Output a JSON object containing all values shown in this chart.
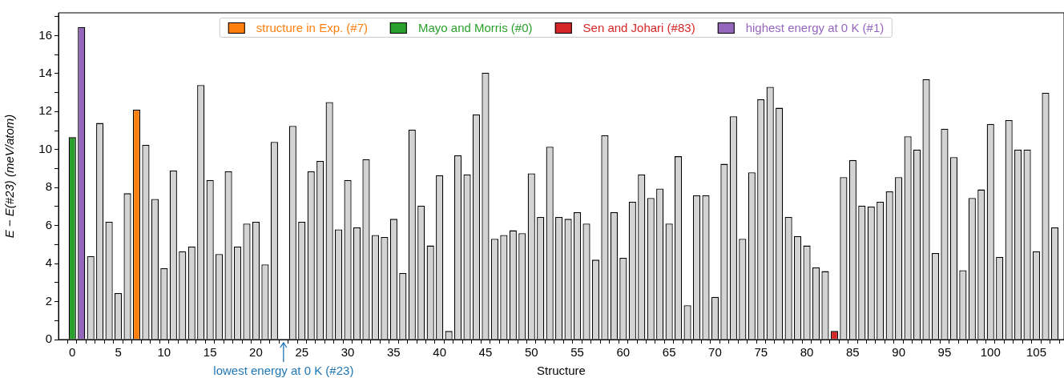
{
  "chart_data": {
    "type": "bar",
    "xlabel": "Structure",
    "ylabel": "E − E(#23) (meV/atom)",
    "series": [
      {
        "color": "#d3d3d3",
        "x": [
          2,
          3,
          4,
          5,
          6,
          8,
          9,
          10,
          11,
          12,
          13,
          14,
          15,
          16,
          17,
          18,
          19,
          20,
          21,
          22,
          23,
          24,
          25,
          26,
          27,
          28,
          29,
          30,
          31,
          32,
          33,
          34,
          35,
          36,
          37,
          38,
          39,
          40,
          41,
          42,
          43,
          44,
          45,
          46,
          47,
          48,
          49,
          50,
          51,
          52,
          53,
          54,
          55,
          56,
          57,
          58,
          59,
          60,
          61,
          62,
          63,
          64,
          65,
          66,
          67,
          68,
          69,
          70,
          71,
          72,
          73,
          74,
          75,
          76,
          77,
          78,
          79,
          80,
          81,
          82,
          84,
          85,
          86,
          87,
          88,
          89,
          90,
          91,
          92,
          93,
          94,
          95,
          96,
          97,
          98,
          99,
          100,
          101,
          102,
          103,
          104,
          105,
          106,
          107
        ],
        "values": [
          4.4,
          11.4,
          6.2,
          2.45,
          7.7,
          10.25,
          7.4,
          3.75,
          8.9,
          4.65,
          4.9,
          13.4,
          8.4,
          4.5,
          8.85,
          4.9,
          6.1,
          6.2,
          3.95,
          10.4,
          0,
          11.25,
          6.2,
          8.85,
          9.4,
          12.5,
          5.8,
          8.4,
          5.9,
          9.5,
          5.5,
          5.4,
          6.35,
          3.5,
          11.05,
          7.05,
          4.95,
          8.65,
          0.45,
          9.7,
          8.7,
          11.85,
          14.05,
          5.3,
          5.5,
          5.75,
          5.6,
          8.75,
          6.45,
          10.15,
          6.45,
          6.35,
          6.7,
          6.1,
          4.2,
          10.75,
          6.7,
          4.3,
          7.25,
          8.7,
          7.45,
          7.95,
          6.1,
          9.65,
          1.8,
          7.6,
          7.6,
          2.25,
          9.25,
          11.75,
          5.3,
          8.8,
          12.65,
          13.3,
          12.2,
          6.45,
          5.45,
          4.95,
          3.8,
          3.6,
          8.55,
          9.45,
          7.05,
          7.0,
          7.25,
          7.8,
          8.55,
          10.7,
          10.0,
          13.7,
          4.55,
          11.1,
          9.6,
          3.65,
          7.45,
          7.9,
          11.35,
          4.35,
          11.55,
          10.0,
          10.0,
          4.65,
          13.0,
          5.9
        ]
      },
      {
        "name": "structure in Exp. (#7)",
        "color": "#ff7f0e",
        "x": [
          7
        ],
        "values": [
          12.1
        ]
      },
      {
        "name": "Mayo and Morris (#0)",
        "color": "#2ca02c",
        "x": [
          0
        ],
        "values": [
          10.65
        ]
      },
      {
        "name": "Sen and Johari (#83)",
        "color": "#d62728",
        "x": [
          83
        ],
        "values": [
          0.45
        ]
      },
      {
        "name": "highest energy at 0 K (#1)",
        "color": "#9467bd",
        "x": [
          1
        ],
        "values": [
          16.45
        ]
      }
    ],
    "xlim": [
      -1,
      107.5
    ],
    "xticks": [
      0,
      {
        "value": 1,
        "label": null
      },
      {
        "value": 2,
        "label": null
      },
      {
        "value": 3,
        "label": null
      },
      {
        "value": 4,
        "label": null
      },
      5,
      {
        "value": 6,
        "label": null
      },
      {
        "value": 7,
        "label": null
      },
      {
        "value": 8,
        "label": null
      },
      {
        "value": 9,
        "label": null
      },
      10,
      {
        "value": 11,
        "label": null
      },
      {
        "value": 12,
        "label": null
      },
      {
        "value": 13,
        "label": null
      },
      {
        "value": 14,
        "label": null
      },
      15,
      {
        "value": 16,
        "label": null
      },
      {
        "value": 17,
        "label": null
      },
      {
        "value": 18,
        "label": null
      },
      {
        "value": 19,
        "label": null
      },
      20,
      {
        "value": 21,
        "label": null
      },
      {
        "value": 22,
        "label": null
      },
      {
        "value": 23,
        "label": null
      },
      {
        "value": 24,
        "label": null
      },
      25,
      {
        "value": 26,
        "label": null
      },
      {
        "value": 27,
        "label": null
      },
      {
        "value": 28,
        "label": null
      },
      {
        "value": 29,
        "label": null
      },
      30,
      {
        "value": 31,
        "label": null
      },
      {
        "value": 32,
        "label": null
      },
      {
        "value": 33,
        "label": null
      },
      {
        "value": 34,
        "label": null
      },
      35,
      {
        "value": 36,
        "label": null
      },
      {
        "value": 37,
        "label": null
      },
      {
        "value": 38,
        "label": null
      },
      {
        "value": 39,
        "label": null
      },
      40,
      {
        "value": 41,
        "label": null
      },
      {
        "value": 42,
        "label": null
      },
      {
        "value": 43,
        "label": null
      },
      {
        "value": 44,
        "label": null
      },
      45,
      {
        "value": 46,
        "label": null
      },
      {
        "value": 47,
        "label": null
      },
      {
        "value": 48,
        "label": null
      },
      {
        "value": 49,
        "label": null
      },
      50,
      {
        "value": 51,
        "label": null
      },
      {
        "value": 52,
        "label": null
      },
      {
        "value": 53,
        "label": null
      },
      {
        "value": 54,
        "label": null
      },
      55,
      {
        "value": 56,
        "label": null
      },
      {
        "value": 57,
        "label": null
      },
      {
        "value": 58,
        "label": null
      },
      {
        "value": 59,
        "label": null
      },
      60,
      {
        "value": 61,
        "label": null
      },
      {
        "value": 62,
        "label": null
      },
      {
        "value": 63,
        "label": null
      },
      {
        "value": 64,
        "label": null
      },
      65,
      {
        "value": 66,
        "label": null
      },
      {
        "value": 67,
        "label": null
      },
      {
        "value": 68,
        "label": null
      },
      {
        "value": 69,
        "label": null
      },
      70,
      {
        "value": 71,
        "label": null
      },
      {
        "value": 72,
        "label": null
      },
      {
        "value": 73,
        "label": null
      },
      {
        "value": 74,
        "label": null
      },
      75,
      {
        "value": 76,
        "label": null
      },
      {
        "value": 77,
        "label": null
      },
      {
        "value": 78,
        "label": null
      },
      {
        "value": 79,
        "label": null
      },
      80,
      {
        "value": 81,
        "label": null
      },
      {
        "value": 82,
        "label": null
      },
      {
        "value": 83,
        "label": null
      },
      {
        "value": 84,
        "label": null
      },
      85,
      {
        "value": 86,
        "label": null
      },
      {
        "value": 87,
        "label": null
      },
      {
        "value": 88,
        "label": null
      },
      {
        "value": 89,
        "label": null
      },
      90,
      {
        "value": 91,
        "label": null
      },
      {
        "value": 92,
        "label": null
      },
      {
        "value": 93,
        "label": null
      },
      {
        "value": 94,
        "label": null
      },
      95,
      {
        "value": 96,
        "label": null
      },
      {
        "value": 97,
        "label": null
      },
      {
        "value": 98,
        "label": null
      },
      {
        "value": 99,
        "label": null
      },
      100,
      {
        "value": 101,
        "label": null
      },
      {
        "value": 102,
        "label": null
      },
      {
        "value": 103,
        "label": null
      },
      {
        "value": 104,
        "label": null
      },
      105,
      {
        "value": 106,
        "label": null
      },
      {
        "value": 107,
        "label": null
      }
    ],
    "ylim": [
      0,
      17.2
    ],
    "yticks": [
      0,
      {
        "value": 1,
        "label": null
      },
      2,
      {
        "value": 3,
        "label": null
      },
      4,
      {
        "value": 5,
        "label": null
      },
      6,
      {
        "value": 7,
        "label": null
      },
      8,
      {
        "value": 9,
        "label": null
      },
      10,
      {
        "value": 11,
        "label": null
      },
      12,
      {
        "value": 13,
        "label": null
      },
      14,
      {
        "value": 15,
        "label": null
      },
      16,
      {
        "value": 17,
        "label": null
      }
    ],
    "annotations": [
      {
        "text": "lowest energy at 0 K (#23)",
        "x": 23,
        "y": 0
      }
    ],
    "legend": "top"
  }
}
